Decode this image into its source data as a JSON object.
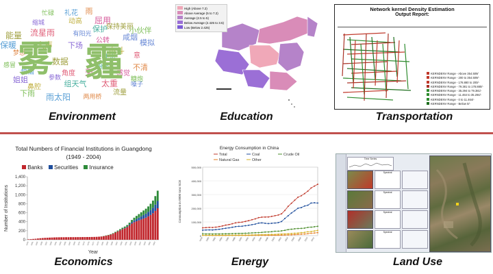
{
  "captions": {
    "environment": "Environment",
    "education": "Education",
    "transportation": "Transportation",
    "economics": "Economics",
    "energy": "Energy",
    "land_use": "Land Use"
  },
  "environment": {
    "big_words": [
      "雾",
      "霾"
    ],
    "words": [
      "忙碌",
      "礼花",
      "雨",
      "屈用",
      "缩城",
      "动高",
      "保护",
      "流星雨",
      "有阳光",
      "保持美丽",
      "小伙伴",
      "保暖",
      "梦想",
      "公转",
      "下场",
      "奋斗",
      "生态",
      "意",
      "模拟",
      "数据",
      "感冒",
      "烦恼",
      "不清",
      "天",
      "参数",
      "鼻腔",
      "组天气",
      "太重",
      "嗓子",
      "流量",
      "下雨",
      "雨太阳",
      "两用桥",
      "感觉",
      "姐姐",
      "人声",
      "纷繁",
      "角度",
      "咸烟",
      "能量",
      "糖炮"
    ]
  },
  "education": {
    "legend": [
      "High (Above 7.2)",
      "Above Average (5 to 7.2)",
      "Average (2.5 to 5)",
      "Below Average (2.425 to 3.5)",
      "Low (Below 2.425)"
    ],
    "legend_colors": [
      "#f0a8b8",
      "#d98cb8",
      "#b583c9",
      "#9b6fd6",
      "#7c5cd6"
    ]
  },
  "transportation": {
    "title": "Network kernel Density Estimation",
    "subtitle": "Output Report:",
    "legend": [
      "KERNDENV Range - Above 354.509/",
      "KERNDENV Range - 200 to 354.509/-",
      "KERNDENV Range - 178.880 to 200/-",
      "KERNDENV Range - 79.381 to 178.880/-",
      "KERNDENV Range - 35.294 to 79.381/-",
      "KERNDENV Range - 11.464 to 35.294/-",
      "KERNDENV Range - 0 to 11.464/-",
      "KERNDENV Range - Below 0/-"
    ],
    "legend_colors": [
      "#c0392b",
      "#c0392b",
      "#c0392b",
      "#a93226",
      "#2e8b2e",
      "#2e8b2e",
      "#2e8b2e",
      "#1e6e1e"
    ]
  },
  "economics": {
    "title_line1": "Total Numbers of Financial Institutions in Guangdong",
    "title_line2": "(1949 - 2004)",
    "legend": [
      "Banks",
      "Securities",
      "Insurance"
    ],
    "colors": [
      "#c1272d",
      "#1f4e9c",
      "#2e8b3a"
    ],
    "ylabel": "Number of Institutions",
    "xlabel": "Year",
    "yticks": [
      "0",
      "200",
      "400",
      "600",
      "800",
      "1,000",
      "1,200",
      "1,400"
    ]
  },
  "energy": {
    "title": "Energy Consumption in China",
    "legend": [
      "Total",
      "Coal",
      "Crude Oil",
      "Natural Gas",
      "Other"
    ],
    "colors": [
      "#c0392b",
      "#1f4e9c",
      "#4a8c2a",
      "#e67e22",
      "#d4b020"
    ],
    "ylabel": "Consumption in 0000 tons SCE",
    "yticks": [
      "0",
      "100,000",
      "200,000",
      "300,000",
      "400,000",
      "500,000"
    ]
  },
  "landuse": {
    "panel_title": "Time Series",
    "spectral_label": "Spectral"
  },
  "chart_data": [
    {
      "type": "bar",
      "title": "Total Numbers of Financial Institutions in Guangdong (1949 - 2004)",
      "xlabel": "Year",
      "ylabel": "Number of Institutions",
      "ylim": [
        0,
        1400
      ],
      "x": [
        1949,
        1950,
        1951,
        1952,
        1953,
        1954,
        1955,
        1956,
        1957,
        1958,
        1959,
        1960,
        1961,
        1962,
        1963,
        1964,
        1965,
        1966,
        1967,
        1968,
        1969,
        1970,
        1971,
        1972,
        1973,
        1974,
        1975,
        1976,
        1977,
        1978,
        1979,
        1980,
        1981,
        1982,
        1983,
        1984,
        1985,
        1986,
        1987,
        1988,
        1989,
        1990,
        1991,
        1992,
        1993,
        1994,
        1995,
        1996,
        1997,
        1998,
        1999,
        2000,
        2001,
        2002,
        2003,
        2004
      ],
      "series": [
        {
          "name": "Banks",
          "values": [
            10,
            14,
            18,
            22,
            28,
            34,
            38,
            42,
            45,
            48,
            50,
            52,
            54,
            55,
            56,
            56,
            57,
            57,
            58,
            58,
            58,
            59,
            59,
            60,
            60,
            61,
            61,
            62,
            63,
            65,
            68,
            72,
            80,
            90,
            100,
            115,
            135,
            160,
            185,
            210,
            235,
            255,
            280,
            320,
            360,
            390,
            410,
            430,
            450,
            470,
            490,
            520,
            550,
            590,
            640,
            700
          ]
        },
        {
          "name": "Securities",
          "values": [
            0,
            0,
            0,
            0,
            0,
            0,
            0,
            0,
            0,
            0,
            0,
            0,
            0,
            0,
            0,
            0,
            0,
            0,
            0,
            0,
            0,
            0,
            0,
            0,
            0,
            0,
            0,
            0,
            0,
            0,
            0,
            0,
            0,
            0,
            0,
            0,
            0,
            0,
            2,
            4,
            6,
            8,
            12,
            20,
            30,
            40,
            50,
            60,
            70,
            80,
            90,
            100,
            110,
            120,
            140,
            160
          ]
        },
        {
          "name": "Insurance",
          "values": [
            0,
            0,
            0,
            0,
            0,
            0,
            0,
            0,
            0,
            0,
            0,
            0,
            0,
            0,
            0,
            0,
            0,
            0,
            0,
            0,
            0,
            0,
            0,
            0,
            0,
            0,
            0,
            0,
            0,
            0,
            0,
            2,
            4,
            6,
            8,
            10,
            12,
            15,
            18,
            22,
            26,
            30,
            35,
            40,
            50,
            60,
            70,
            80,
            90,
            100,
            110,
            120,
            140,
            160,
            190,
            230
          ]
        }
      ]
    },
    {
      "type": "line",
      "title": "Energy Consumption in China",
      "ylabel": "Consumption in 0000 tons SCE",
      "ylim": [
        0,
        500000
      ],
      "x": [
        1978,
        1979,
        1980,
        1981,
        1982,
        1983,
        1984,
        1985,
        1986,
        1987,
        1988,
        1989,
        1990,
        1991,
        1992,
        1993,
        1994,
        1995,
        1996,
        1997,
        1998,
        1999,
        2000,
        2001,
        2002,
        2003,
        2004,
        2005,
        2006,
        2007,
        2008,
        2009,
        2010,
        2011,
        2012,
        2013
      ],
      "series": [
        {
          "name": "Total",
          "values": [
            57144,
            58588,
            60275,
            59447,
            62067,
            66040,
            70904,
            76682,
            80850,
            86632,
            92997,
            96934,
            98703,
            103783,
            109170,
            115993,
            122737,
            131176,
            135192,
            135909,
            136184,
            140569,
            145531,
            150406,
            159431,
            183792,
            213456,
            235997,
            258676,
            280508,
            291448,
            306647,
            324939,
            348002,
            361732,
            375000
          ]
        },
        {
          "name": "Coal",
          "values": [
            40000,
            41000,
            42000,
            41500,
            43500,
            46500,
            50000,
            54000,
            57000,
            61000,
            65500,
            68000,
            69000,
            72500,
            75500,
            80000,
            84500,
            91000,
            93000,
            90000,
            88000,
            90000,
            92000,
            95000,
            103000,
            125000,
            145000,
            165000,
            182000,
            200000,
            205000,
            216000,
            222000,
            238000,
            240000,
            238000
          ]
        },
        {
          "name": "Crude Oil",
          "values": [
            13000,
            12800,
            12500,
            12000,
            12200,
            12500,
            13000,
            13500,
            14000,
            14800,
            15500,
            16000,
            16500,
            17500,
            18500,
            20000,
            21000,
            22000,
            24000,
            26000,
            27000,
            29000,
            32000,
            32500,
            35000,
            38500,
            44000,
            47000,
            50000,
            52000,
            53000,
            55000,
            60000,
            62000,
            65000,
            68000
          ]
        },
        {
          "name": "Natural Gas",
          "values": [
            1800,
            1900,
            1900,
            1700,
            1600,
            1600,
            1700,
            1700,
            1800,
            1800,
            1900,
            2000,
            2000,
            2100,
            2100,
            2200,
            2300,
            2400,
            2500,
            2700,
            2800,
            3000,
            3300,
            3700,
            3900,
            4500,
            5300,
            6200,
            7600,
            9100,
            10600,
            11800,
            14300,
            17800,
            19300,
            22000
          ]
        },
        {
          "name": "Other",
          "values": [
            2000,
            2200,
            2300,
            2400,
            2600,
            2900,
            3000,
            3100,
            3200,
            3300,
            3500,
            3700,
            4000,
            4200,
            4500,
            5000,
            5500,
            6000,
            6500,
            7000,
            8000,
            8500,
            9000,
            10500,
            11500,
            12500,
            14000,
            15500,
            17500,
            19000,
            22000,
            24000,
            28000,
            30000,
            34000,
            38000
          ]
        }
      ]
    }
  ]
}
